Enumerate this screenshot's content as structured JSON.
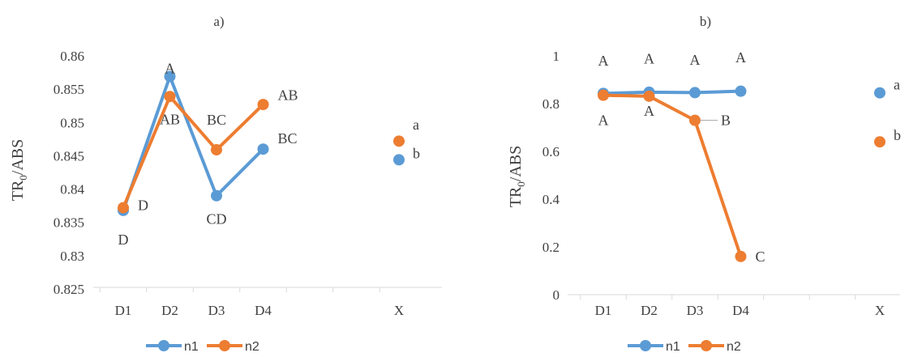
{
  "colors": {
    "n1": "#5B9BD5",
    "n2": "#ED7D31",
    "axis": "#D9D9D9",
    "text": "#404040"
  },
  "legend": [
    "n1",
    "n2"
  ],
  "chart_data": [
    {
      "type": "line",
      "title": "a)",
      "xlabel": "",
      "ylabel_main": "TR",
      "ylabel_sub": "0",
      "ylabel_rest": "/ABS",
      "categories": [
        "D1",
        "D2",
        "D3",
        "D4",
        "",
        "X"
      ],
      "ylim": [
        0.825,
        0.86
      ],
      "yticks": [
        "0.825",
        "0.83",
        "0.835",
        "0.84",
        "0.845",
        "0.85",
        "0.855",
        "0.86"
      ],
      "grid": false,
      "legend_position": "bottom",
      "series": [
        {
          "name": "n1",
          "values": [
            0.8368,
            0.8569,
            0.839,
            0.846,
            null,
            0.8444
          ]
        },
        {
          "name": "n2",
          "values": [
            0.8372,
            0.8539,
            0.8459,
            0.8527,
            null,
            0.8472
          ]
        }
      ],
      "annotations": [
        {
          "text": "D",
          "x": "D1",
          "y": 0.8376,
          "pos": "right"
        },
        {
          "text": "D",
          "x": "D1",
          "y": 0.8339,
          "pos": "below"
        },
        {
          "text": "A",
          "x": "D2",
          "y": 0.8569,
          "pos": "above"
        },
        {
          "text": "AB",
          "x": "D2",
          "y": 0.8519,
          "pos": "below"
        },
        {
          "text": "BC",
          "x": "D3",
          "y": 0.8492,
          "pos": "above"
        },
        {
          "text": "CD",
          "x": "D3",
          "y": 0.837,
          "pos": "below"
        },
        {
          "text": "AB",
          "x": "D4",
          "y": 0.8541,
          "pos": "right"
        },
        {
          "text": "BC",
          "x": "D4",
          "y": 0.8476,
          "pos": "right"
        },
        {
          "text": "a",
          "x": "X",
          "y": 0.8487,
          "pos": "right"
        },
        {
          "text": "b",
          "x": "X",
          "y": 0.8444,
          "pos": "right"
        }
      ]
    },
    {
      "type": "line",
      "title": "b)",
      "xlabel": "",
      "ylabel_main": "TR",
      "ylabel_sub": "0",
      "ylabel_rest": "/ABS",
      "categories": [
        "D1",
        "D2",
        "D3",
        "D4",
        "",
        "X"
      ],
      "ylim": [
        0,
        1
      ],
      "yticks": [
        "0",
        "0.2",
        "0.4",
        "0.6",
        "0.8",
        "1"
      ],
      "grid": false,
      "legend_position": "bottom",
      "series": [
        {
          "name": "n1",
          "values": [
            0.843,
            0.848,
            0.846,
            0.852,
            null,
            0.845
          ]
        },
        {
          "name": "n2",
          "values": [
            0.835,
            0.831,
            0.73,
            0.16,
            null,
            0.64
          ]
        }
      ],
      "annotations": [
        {
          "text": "A",
          "x": "D1",
          "y": 0.945,
          "pos": "above"
        },
        {
          "text": "A",
          "x": "D1",
          "y": 0.772,
          "pos": "below"
        },
        {
          "text": "A",
          "x": "D2",
          "y": 0.955,
          "pos": "above"
        },
        {
          "text": "A",
          "x": "D2",
          "y": 0.81,
          "pos": "below"
        },
        {
          "text": "A",
          "x": "D3",
          "y": 0.95,
          "pos": "above"
        },
        {
          "text": "B",
          "x": "D3",
          "y": 0.73,
          "pos": "right"
        },
        {
          "text": "A",
          "x": "D4",
          "y": 0.96,
          "pos": "above"
        },
        {
          "text": "C",
          "x": "D4",
          "y": 0.16,
          "pos": "right"
        },
        {
          "text": "a",
          "x": "X",
          "y": 0.852,
          "pos": "right"
        },
        {
          "text": "b",
          "x": "X",
          "y": 0.64,
          "pos": "right"
        }
      ]
    }
  ]
}
